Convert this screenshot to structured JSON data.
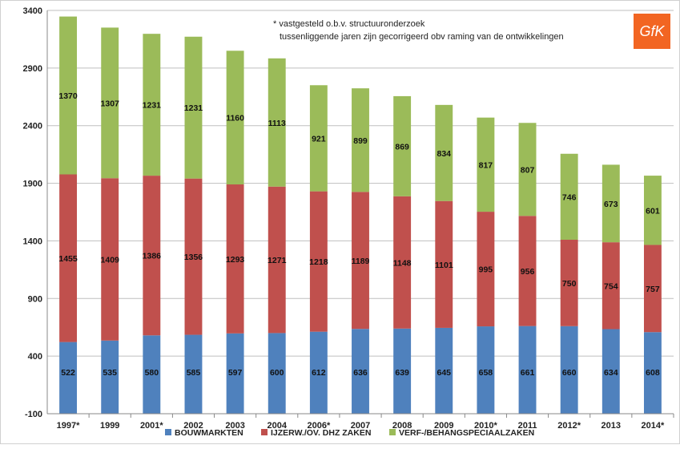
{
  "chart_data": {
    "type": "bar",
    "stacked": true,
    "categories": [
      "1997*",
      "1999",
      "2001*",
      "2002",
      "2003",
      "2004",
      "2006*",
      "2007",
      "2008",
      "2009",
      "2010*",
      "2011",
      "2012*",
      "2013",
      "2014*"
    ],
    "series": [
      {
        "name": "BOUWMARKTEN",
        "color": "#4f81bd",
        "values": [
          522,
          535,
          580,
          585,
          597,
          600,
          612,
          636,
          639,
          645,
          658,
          661,
          660,
          634,
          608
        ]
      },
      {
        "name": "IJZERW./OV. DHZ ZAKEN",
        "color": "#c0504d",
        "values": [
          1455,
          1409,
          1386,
          1356,
          1293,
          1271,
          1218,
          1189,
          1148,
          1101,
          995,
          956,
          750,
          754,
          757
        ]
      },
      {
        "name": "VERF-/BEHANGSPECIAALZAKEN",
        "color": "#9bbb59",
        "values": [
          1370,
          1307,
          1231,
          1231,
          1160,
          1113,
          921,
          899,
          869,
          834,
          817,
          807,
          746,
          673,
          601
        ]
      }
    ],
    "yticks": [
      -100,
      400,
      900,
      1400,
      1900,
      2400,
      2900,
      3400
    ],
    "ylim": [
      -100,
      3400
    ],
    "grid": true,
    "legend": "bottom",
    "annotations": [
      "* vastgesteld o.b.v. structuuronderzoek",
      "tussenliggende jaren zijn gecorrigeerd obv raming van de ontwikkelingen"
    ]
  },
  "logo": {
    "text": "GfK",
    "color": "#f26522"
  }
}
